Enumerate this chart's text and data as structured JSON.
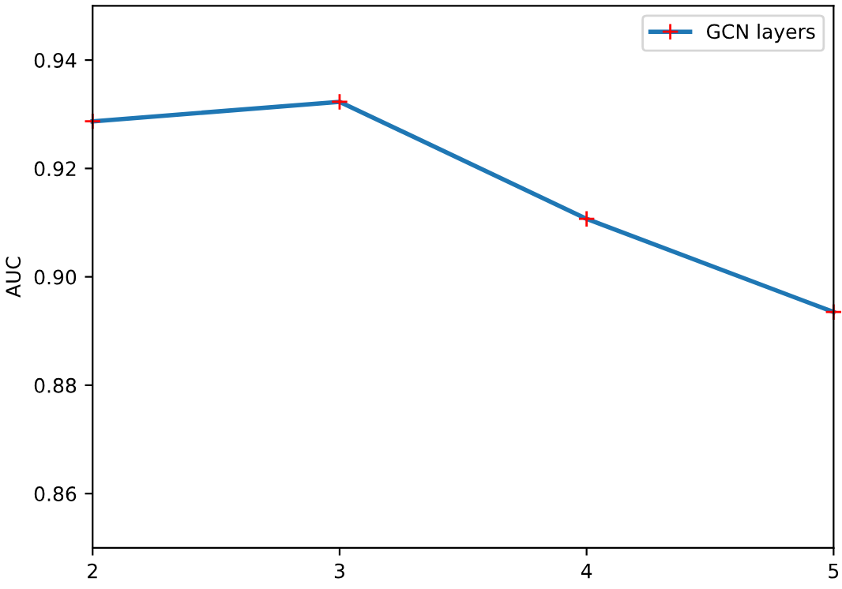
{
  "chart_data": {
    "type": "line",
    "ylabel": "AUC",
    "x": [
      2,
      3,
      4,
      5
    ],
    "series": [
      {
        "name": "GCN layers",
        "color": "#1f77b4",
        "colors": [
          "#ff0000",
          "#ff0000",
          "#ff0000",
          "#ff0000"
        ],
        "values": [
          0.9287,
          0.9323,
          0.9107,
          0.8935
        ]
      }
    ],
    "xlim": [
      2,
      5
    ],
    "xticks": [
      2,
      3,
      4,
      5
    ],
    "ylim": [
      0.85,
      0.95
    ],
    "yticks": [
      {
        "value": 0.86,
        "label": "0.86"
      },
      {
        "value": 0.88,
        "label": "0.88"
      },
      {
        "value": 0.9,
        "label": "0.90"
      },
      {
        "value": 0.92,
        "label": "0.92"
      },
      {
        "value": 0.94,
        "label": "0.94"
      }
    ],
    "marker": "cross",
    "legend": "top right",
    "grid": false
  }
}
